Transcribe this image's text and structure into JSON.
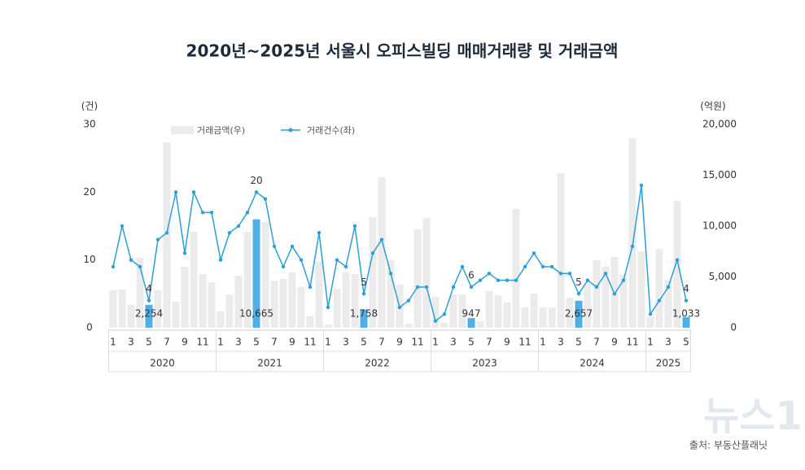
{
  "chart_data": {
    "type": "bar-line",
    "title": "2020년~2025년 서울시 오피스빌딩 매매거래량 및 거래금액",
    "y_unit": "(건)",
    "y2_unit": "(억원)",
    "source": "출처: 부동산플래닛",
    "watermark": "뉴스1",
    "categories": [
      "1",
      null,
      "3",
      null,
      "5",
      null,
      "7",
      null,
      "9",
      null,
      "11",
      null,
      "1",
      null,
      "3",
      null,
      "5",
      null,
      "7",
      null,
      "9",
      null,
      "11",
      null,
      "1",
      null,
      "3",
      null,
      "5",
      null,
      "7",
      null,
      "9",
      null,
      "11",
      null,
      "1",
      null,
      "3",
      null,
      "5",
      null,
      "7",
      null,
      "9",
      null,
      "11",
      null,
      "1",
      null,
      "3",
      null,
      "5",
      null,
      "7",
      null,
      "9",
      null,
      "11",
      null,
      "1",
      null,
      "3",
      null,
      "5"
    ],
    "years": [
      "2020",
      "2021",
      "2022",
      "2023",
      "2024",
      "2025"
    ],
    "ylim": [
      0,
      30
    ],
    "yticks": [
      0,
      10,
      20,
      30
    ],
    "y2lim": [
      0,
      20000
    ],
    "y2ticks": [
      0,
      {
        "value": 5000,
        "label": "5,000"
      },
      {
        "value": 10000,
        "label": "10,000"
      },
      {
        "value": 15000,
        "label": "15,000"
      },
      {
        "value": 20000,
        "label": "20,000"
      }
    ],
    "series": [
      {
        "name": "거래금액(우)",
        "type": "bar",
        "axis": "y2",
        "color": "#ebebeb",
        "colors": [
          "#ebebeb",
          "#ebebeb",
          "#ebebeb",
          "#ebebeb",
          "#4fb0e8",
          "#ebebeb",
          "#ebebeb",
          "#ebebeb",
          "#ebebeb",
          "#ebebeb",
          "#ebebeb",
          "#ebebeb",
          "#ebebeb",
          "#ebebeb",
          "#ebebeb",
          "#ebebeb",
          "#4fb0e8",
          "#ebebeb",
          "#ebebeb",
          "#ebebeb",
          "#ebebeb",
          "#ebebeb",
          "#ebebeb",
          "#ebebeb",
          "#ebebeb",
          "#ebebeb",
          "#ebebeb",
          "#ebebeb",
          "#4fb0e8",
          "#ebebeb",
          "#ebebeb",
          "#ebebeb",
          "#ebebeb",
          "#ebebeb",
          "#ebebeb",
          "#ebebeb",
          "#ebebeb",
          "#ebebeb",
          "#ebebeb",
          "#ebebeb",
          "#4fb0e8",
          "#ebebeb",
          "#ebebeb",
          "#ebebeb",
          "#ebebeb",
          "#ebebeb",
          "#ebebeb",
          "#ebebeb",
          "#ebebeb",
          "#ebebeb",
          "#ebebeb",
          "#ebebeb",
          "#4fb0e8",
          "#ebebeb",
          "#ebebeb",
          "#ebebeb",
          "#ebebeb",
          "#ebebeb",
          "#ebebeb",
          "#ebebeb",
          "#ebebeb",
          "#ebebeb",
          "#ebebeb",
          "#ebebeb",
          "#4fb0e8"
        ],
        "values": [
          3680,
          3760,
          2240,
          6880,
          2254,
          3680,
          18240,
          2560,
          6000,
          9440,
          5280,
          4480,
          1600,
          3280,
          5120,
          9440,
          10665,
          10400,
          4640,
          4800,
          5440,
          4000,
          1120,
          6480,
          320,
          3840,
          5440,
          5280,
          1758,
          10880,
          14800,
          6640,
          4240,
          400,
          9680,
          10800,
          3040,
          480,
          3280,
          3280,
          947,
          640,
          3600,
          3200,
          2480,
          11680,
          2000,
          3360,
          2000,
          2000,
          15200,
          2960,
          2657,
          4320,
          6640,
          6000,
          6960,
          5200,
          18640,
          7500,
          1040,
          7760,
          4640,
          12480,
          1033
        ],
        "value_labels": [
          null,
          null,
          null,
          null,
          "2,254",
          null,
          null,
          null,
          null,
          null,
          null,
          null,
          null,
          null,
          null,
          null,
          "10,665",
          null,
          null,
          null,
          null,
          null,
          null,
          null,
          null,
          null,
          null,
          null,
          "1,758",
          null,
          null,
          null,
          null,
          null,
          null,
          null,
          null,
          null,
          null,
          null,
          "947",
          null,
          null,
          null,
          null,
          null,
          null,
          null,
          null,
          null,
          null,
          null,
          "2,657",
          null,
          null,
          null,
          null,
          null,
          null,
          null,
          null,
          null,
          null,
          null,
          "1,033"
        ]
      },
      {
        "name": "거래건수(좌)",
        "type": "line",
        "axis": "y",
        "color": "#2a9fd8",
        "values": [
          9,
          15,
          10,
          9,
          4,
          13,
          14,
          20,
          11,
          20,
          17,
          17,
          10,
          14,
          15,
          17,
          20,
          19,
          12,
          9,
          12,
          10,
          6,
          14,
          3,
          10,
          9,
          15,
          5,
          11,
          13,
          8,
          3,
          4,
          6,
          6,
          1,
          2,
          6,
          9,
          6,
          7,
          8,
          7,
          7,
          7,
          9,
          11,
          9,
          9,
          8,
          8,
          5,
          7,
          6,
          8,
          5,
          7,
          12,
          21,
          2,
          4,
          6,
          10,
          4
        ],
        "value_labels": [
          null,
          null,
          null,
          null,
          "4",
          null,
          null,
          null,
          null,
          null,
          null,
          null,
          null,
          null,
          null,
          null,
          "20",
          null,
          null,
          null,
          null,
          null,
          null,
          null,
          null,
          null,
          null,
          null,
          "5",
          null,
          null,
          null,
          null,
          null,
          null,
          null,
          null,
          null,
          null,
          null,
          "6",
          null,
          null,
          null,
          null,
          null,
          null,
          null,
          null,
          null,
          null,
          null,
          "5",
          null,
          null,
          null,
          null,
          null,
          null,
          null,
          null,
          null,
          null,
          null,
          "4"
        ]
      }
    ]
  }
}
